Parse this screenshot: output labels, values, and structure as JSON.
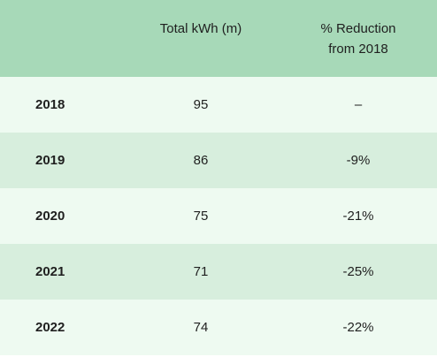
{
  "chart_data": {
    "type": "table",
    "columns": [
      "",
      "Total kWh (m)",
      "% Reduction from 2018"
    ],
    "header": {
      "year": "",
      "kwh": "Total kWh (m)",
      "reduction_line1": "% Reduction",
      "reduction_line2": "from 2018"
    },
    "rows": [
      {
        "year": "2018",
        "kwh": "95",
        "reduction": "–"
      },
      {
        "year": "2019",
        "kwh": "86",
        "reduction": "-9%"
      },
      {
        "year": "2020",
        "kwh": "75",
        "reduction": "-21%"
      },
      {
        "year": "2021",
        "kwh": "71",
        "reduction": "-25%"
      },
      {
        "year": "2022",
        "kwh": "74",
        "reduction": "-22%"
      }
    ],
    "colors": {
      "header_bg": "#a7d9b8",
      "row_light": "#eefaf1",
      "row_dark": "#d7eedd"
    }
  }
}
